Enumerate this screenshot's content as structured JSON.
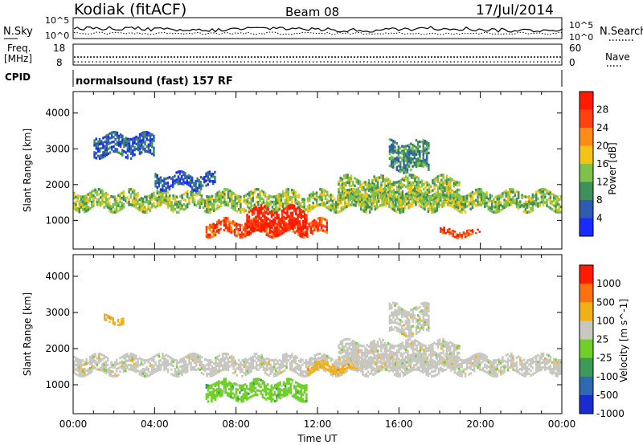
{
  "header": {
    "station": "Kodiak (fitACF)",
    "beam": "Beam 08",
    "date": "17/Jul/2014"
  },
  "strip_panels": {
    "nsky": {
      "left_label": "N.Sky",
      "left_ticks": [
        "10^5",
        "10^0"
      ],
      "right_ticks": [
        "10^5",
        "10^0"
      ],
      "right_label": "N.Search"
    },
    "freq": {
      "left_label_line1": "Freq.",
      "left_label_line2": "[MHz]",
      "left_ticks": [
        "18",
        "8"
      ],
      "right_ticks": [
        "60",
        "0"
      ],
      "right_label": "Nave"
    },
    "cpid": {
      "left_label": "CPID",
      "program": "normalsound (fast) 157 RF"
    }
  },
  "chart_data": [
    {
      "type": "heatmap",
      "parameter": "power",
      "xlabel": "",
      "ylabel": "Slant Range [km]",
      "xlim": [
        0,
        24
      ],
      "ylim": [
        200,
        4600
      ],
      "y_ticks": [
        1000,
        2000,
        3000,
        4000
      ],
      "colorbar": {
        "label": "Power [dB]",
        "ticks": [
          "4",
          "8",
          "12",
          "16",
          "20",
          "24",
          "28"
        ],
        "colors": [
          "#1a2bff",
          "#2f5cb0",
          "#3f8f5a",
          "#7fc24b",
          "#f2c418",
          "#ff8c18",
          "#ff4010",
          "#ff1a00"
        ]
      },
      "echo_regions": [
        {
          "t": [
            0.0,
            24.0
          ],
          "range": [
            1300,
            1800
          ],
          "level": 3
        },
        {
          "t": [
            6.5,
            12.5
          ],
          "range": [
            600,
            1000
          ],
          "level": 6
        },
        {
          "t": [
            8.5,
            11.5
          ],
          "range": [
            650,
            1350
          ],
          "level": 7
        },
        {
          "t": [
            13.0,
            19.0
          ],
          "range": [
            1500,
            2200
          ],
          "level": 3
        },
        {
          "t": [
            18.0,
            20.0
          ],
          "range": [
            550,
            750
          ],
          "level": 6
        },
        {
          "t": [
            15.5,
            17.5
          ],
          "range": [
            2400,
            3200
          ],
          "level": 2
        },
        {
          "t": [
            4.0,
            7.0
          ],
          "range": [
            1900,
            2300
          ],
          "level": 1
        },
        {
          "t": [
            1.0,
            4.0
          ],
          "range": [
            2800,
            3400
          ],
          "level": 1
        }
      ]
    },
    {
      "type": "heatmap",
      "parameter": "velocity",
      "xlabel": "Time UT",
      "ylabel": "Slant Range [km]",
      "xlim": [
        0,
        24
      ],
      "ylim": [
        200,
        4600
      ],
      "x_ticks": [
        "00:00",
        "04:00",
        "08:00",
        "12:00",
        "16:00",
        "20:00",
        "00:00"
      ],
      "y_ticks": [
        1000,
        2000,
        3000,
        4000
      ],
      "colorbar": {
        "label": "Velocity [m s^-1]",
        "ticks": [
          "1000",
          "500",
          "100",
          "25",
          "-25",
          "-100",
          "-500",
          "-1000"
        ],
        "colors": [
          "#1a2bd0",
          "#2f6ab0",
          "#3f9a5a",
          "#6fd02a",
          "#c8c8c0",
          "#f2b018",
          "#ff7010",
          "#ff1a00"
        ]
      },
      "echo_regions": [
        {
          "t": [
            0.0,
            24.0
          ],
          "range": [
            1300,
            1800
          ],
          "level": 4
        },
        {
          "t": [
            6.5,
            11.5
          ],
          "range": [
            600,
            1100
          ],
          "level": 3
        },
        {
          "t": [
            11.5,
            14.0
          ],
          "range": [
            1350,
            1600
          ],
          "level": 5
        },
        {
          "t": [
            13.0,
            19.0
          ],
          "range": [
            1500,
            2200
          ],
          "level": 4
        },
        {
          "t": [
            15.5,
            17.5
          ],
          "range": [
            2400,
            3200
          ],
          "level": 4
        },
        {
          "t": [
            1.5,
            2.5
          ],
          "range": [
            2700,
            2900
          ],
          "level": 5
        }
      ]
    }
  ]
}
